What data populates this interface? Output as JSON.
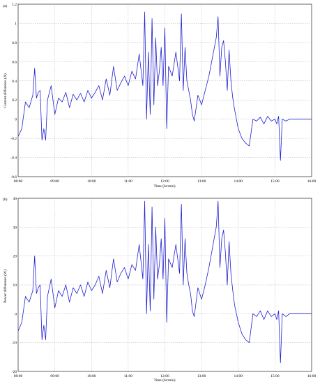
{
  "colors": {
    "series": "#1f1fd0",
    "grid": "#b0b0b0",
    "axis": "#000000"
  },
  "chart_data": [
    {
      "type": "line",
      "panel_label": "(a)",
      "xlabel": "Time (hr:min)",
      "ylabel": "Current difference (A)",
      "x_tick_labels": [
        "08:00",
        "09:00",
        "10:00",
        "11:00",
        "12:00",
        "13:00",
        "14:00",
        "15:00",
        "16:00"
      ],
      "y_tick_labels": [
        "-0.6",
        "-0.4",
        "-0.2",
        "0",
        "0.2",
        "0.4",
        "0.6",
        "0.8",
        "1",
        "1.2"
      ],
      "xlim": [
        8,
        16
      ],
      "ylim": [
        -0.6,
        1.2
      ],
      "grid": true,
      "series": [
        {
          "x": [
            8.0,
            8.1,
            8.2,
            8.3,
            8.4,
            8.45,
            8.5,
            8.55,
            8.6,
            8.65,
            8.7,
            8.75,
            8.8,
            8.9,
            9.0,
            9.1,
            9.2,
            9.3,
            9.4,
            9.5,
            9.6,
            9.7,
            9.8,
            9.9,
            10.0,
            10.1,
            10.2,
            10.3,
            10.4,
            10.5,
            10.6,
            10.7,
            10.8,
            10.9,
            11.0,
            11.1,
            11.2,
            11.3,
            11.4,
            11.45,
            11.5,
            11.55,
            11.6,
            11.65,
            11.7,
            11.75,
            11.8,
            11.85,
            11.9,
            11.95,
            12.0,
            12.05,
            12.1,
            12.2,
            12.3,
            12.4,
            12.45,
            12.5,
            12.55,
            12.6,
            12.65,
            12.7,
            12.75,
            12.8,
            12.9,
            13.0,
            13.1,
            13.2,
            13.3,
            13.4,
            13.45,
            13.5,
            13.55,
            13.6,
            13.65,
            13.7,
            13.75,
            13.8,
            13.85,
            13.9,
            14.0,
            14.1,
            14.2,
            14.3,
            14.4,
            14.5,
            14.6,
            14.7,
            14.8,
            14.9,
            15.0,
            15.05,
            15.1,
            15.15,
            15.2,
            15.3,
            15.4,
            15.5,
            15.6,
            15.7,
            15.8,
            15.9,
            16.0
          ],
          "y": [
            -0.18,
            -0.1,
            0.18,
            0.12,
            0.25,
            0.53,
            0.22,
            0.28,
            0.3,
            -0.22,
            -0.1,
            -0.22,
            0.2,
            0.35,
            0.05,
            0.22,
            0.18,
            0.28,
            0.12,
            0.26,
            0.2,
            0.27,
            0.18,
            0.3,
            0.22,
            0.28,
            0.35,
            0.2,
            0.42,
            0.25,
            0.55,
            0.3,
            0.38,
            0.45,
            0.35,
            0.5,
            0.42,
            0.68,
            0.35,
            1.12,
            0.0,
            0.7,
            0.05,
            1.05,
            0.15,
            0.85,
            0.35,
            0.5,
            0.75,
            0.35,
            0.95,
            -0.1,
            0.55,
            0.45,
            0.7,
            0.4,
            1.1,
            0.3,
            0.75,
            0.4,
            0.3,
            0.2,
            0.05,
            -0.02,
            0.25,
            0.15,
            0.3,
            0.45,
            0.65,
            0.85,
            1.07,
            0.45,
            0.75,
            0.82,
            0.6,
            0.3,
            0.72,
            0.4,
            0.22,
            0.1,
            -0.1,
            -0.2,
            -0.25,
            -0.28,
            0.0,
            -0.02,
            0.02,
            -0.05,
            0.03,
            -0.02,
            0.0,
            -0.05,
            0.03,
            -0.43,
            0.0,
            -0.02,
            0.0,
            0.0,
            0.0,
            0.0,
            0.0,
            0.0,
            0.0
          ]
        }
      ]
    },
    {
      "type": "line",
      "panel_label": "(b)",
      "xlabel": "Time (hr:min)",
      "ylabel": "Power difference (W)",
      "x_tick_labels": [
        "08:00",
        "09:00",
        "10:00",
        "11:00",
        "12:00",
        "13:00",
        "14:00",
        "15:00",
        "16:00"
      ],
      "y_tick_labels": [
        "-20",
        "-10",
        "0",
        "10",
        "20",
        "30",
        "40"
      ],
      "xlim": [
        8,
        16
      ],
      "ylim": [
        -20,
        40
      ],
      "grid": true,
      "series": [
        {
          "x": [
            8.0,
            8.1,
            8.2,
            8.3,
            8.4,
            8.45,
            8.5,
            8.55,
            8.6,
            8.65,
            8.7,
            8.75,
            8.8,
            8.9,
            9.0,
            9.1,
            9.2,
            9.3,
            9.4,
            9.5,
            9.6,
            9.7,
            9.8,
            9.9,
            10.0,
            10.1,
            10.2,
            10.3,
            10.4,
            10.5,
            10.6,
            10.7,
            10.8,
            10.9,
            11.0,
            11.1,
            11.2,
            11.3,
            11.4,
            11.45,
            11.5,
            11.55,
            11.6,
            11.65,
            11.7,
            11.75,
            11.8,
            11.85,
            11.9,
            11.95,
            12.0,
            12.05,
            12.1,
            12.2,
            12.3,
            12.4,
            12.45,
            12.5,
            12.55,
            12.6,
            12.65,
            12.7,
            12.75,
            12.8,
            12.9,
            13.0,
            13.1,
            13.2,
            13.3,
            13.4,
            13.45,
            13.5,
            13.55,
            13.6,
            13.65,
            13.7,
            13.75,
            13.8,
            13.85,
            13.9,
            14.0,
            14.1,
            14.2,
            14.3,
            14.4,
            14.5,
            14.6,
            14.7,
            14.8,
            14.9,
            15.0,
            15.05,
            15.1,
            15.15,
            15.2,
            15.3,
            15.4,
            15.5,
            15.6,
            15.7,
            15.8,
            15.9,
            16.0
          ],
          "y": [
            -6,
            -3,
            6,
            4,
            8,
            20,
            7,
            9,
            10,
            -9,
            -4,
            -9,
            6,
            12,
            2,
            8,
            6,
            10,
            4,
            9,
            7,
            10,
            6,
            11,
            8,
            10,
            13,
            7,
            15,
            9,
            19,
            11,
            14,
            16,
            12,
            17,
            15,
            24,
            12,
            39,
            0,
            24,
            1,
            37,
            5,
            30,
            12,
            17,
            26,
            12,
            33,
            -3,
            19,
            16,
            24,
            14,
            38,
            10,
            26,
            14,
            10,
            7,
            1,
            -1,
            9,
            5,
            10,
            16,
            23,
            30,
            39,
            16,
            26,
            29,
            21,
            10,
            25,
            14,
            8,
            3,
            -3,
            -7,
            -9,
            -10,
            0,
            -1,
            1,
            -2,
            1,
            -1,
            0,
            -2,
            1,
            -17,
            0,
            -1,
            0,
            0,
            0,
            0,
            0,
            0,
            0
          ]
        }
      ]
    }
  ]
}
